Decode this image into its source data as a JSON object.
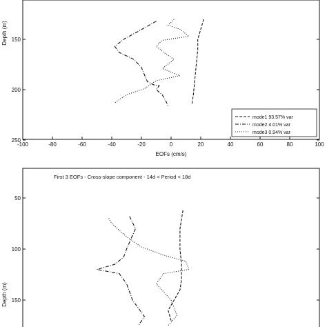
{
  "chart_data": [
    {
      "type": "line",
      "title": "",
      "xlabel": "EOFs (cm/s)",
      "ylabel": "Depth (m)",
      "xlim": [
        -100,
        100
      ],
      "ylim": [
        250,
        130
      ],
      "x_ticks": [
        -100,
        -80,
        -60,
        -40,
        -20,
        0,
        20,
        40,
        60,
        80,
        100
      ],
      "y_ticks": [
        150,
        200,
        250
      ],
      "grid": false,
      "legend_position": "bottom-right",
      "series": [
        {
          "name": "mode1",
          "legend_label": "mode1  93.57% var",
          "line_style": "dashed",
          "points": [
            [
              22,
              130
            ],
            [
              20,
              140
            ],
            [
              18,
              150
            ],
            [
              18,
              160
            ],
            [
              17,
              175
            ],
            [
              16,
              190
            ],
            [
              15,
              205
            ],
            [
              14,
              215
            ]
          ]
        },
        {
          "name": "mode2",
          "legend_label": "mode2  4.01% var",
          "line_style": "dashdot",
          "points": [
            [
              -10,
              132
            ],
            [
              -22,
              142
            ],
            [
              -32,
              150
            ],
            [
              -38,
              157
            ],
            [
              -35,
              163
            ],
            [
              -25,
              170
            ],
            [
              -20,
              178
            ],
            [
              -18,
              185
            ],
            [
              -16,
              192
            ],
            [
              -12,
              195
            ],
            [
              -8,
              196
            ],
            [
              -10,
              200
            ],
            [
              -6,
              205
            ],
            [
              -4,
              210
            ],
            [
              -2,
              216
            ]
          ]
        },
        {
          "name": "mode3",
          "legend_label": "mode3  0.94% var",
          "line_style": "dotted",
          "points": [
            [
              2,
              130
            ],
            [
              -2,
              136
            ],
            [
              6,
              140
            ],
            [
              12,
              147
            ],
            [
              -6,
              151
            ],
            [
              -10,
              157
            ],
            [
              -4,
              164
            ],
            [
              2,
              170
            ],
            [
              -6,
              179
            ],
            [
              6,
              186
            ],
            [
              -10,
              191
            ],
            [
              -18,
              199
            ],
            [
              -30,
              205
            ],
            [
              -38,
              213
            ]
          ]
        }
      ]
    },
    {
      "type": "line",
      "title": "First 3 EOFs - Cross-slope component - 14d < Period < 18d",
      "xlabel": "",
      "ylabel": "Depth (m)",
      "ylim": [
        25,
        175
      ],
      "y_ticks": [
        50,
        100,
        150
      ],
      "grid": false,
      "series": [
        {
          "name": "mode1",
          "line_style": "dashed",
          "points": [
            [
              8,
              62
            ],
            [
              6,
              80
            ],
            [
              6,
              100
            ],
            [
              7,
              115
            ],
            [
              7,
              130
            ],
            [
              6,
              140
            ],
            [
              2,
              150
            ],
            [
              -2,
              160
            ],
            [
              0,
              170
            ]
          ]
        },
        {
          "name": "mode2",
          "line_style": "dashdot",
          "points": [
            [
              -28,
              68
            ],
            [
              -24,
              80
            ],
            [
              -30,
              100
            ],
            [
              -32,
              108
            ],
            [
              -38,
              115
            ],
            [
              -50,
              120
            ],
            [
              -35,
              124
            ],
            [
              -30,
              134
            ],
            [
              -26,
              150
            ],
            [
              -18,
              166
            ],
            [
              -22,
              175
            ]
          ]
        },
        {
          "name": "mode3",
          "line_style": "dotted",
          "points": [
            [
              -42,
              70
            ],
            [
              -40,
              75
            ],
            [
              -30,
              88
            ],
            [
              -20,
              98
            ],
            [
              -5,
              106
            ],
            [
              10,
              112
            ],
            [
              12,
              120
            ],
            [
              -5,
              124
            ],
            [
              -10,
              134
            ],
            [
              0,
              150
            ],
            [
              4,
              165
            ],
            [
              -2,
              175
            ]
          ]
        }
      ]
    }
  ]
}
